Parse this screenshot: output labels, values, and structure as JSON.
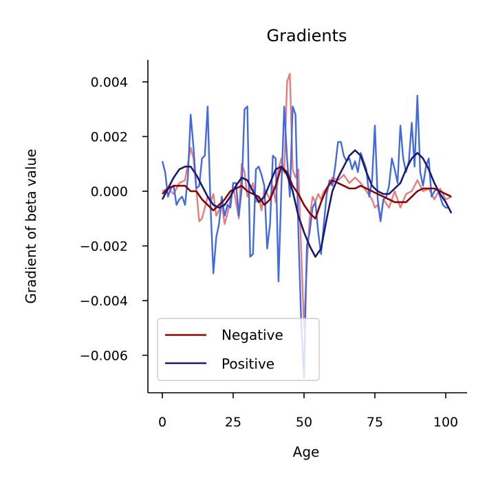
{
  "chart_data": {
    "type": "line",
    "title": "Gradients",
    "xlabel": "Age",
    "ylabel": "Gradient of beta value",
    "xlim": [
      -5,
      107
    ],
    "ylim": [
      -0.0073,
      0.0048
    ],
    "xticks": [
      0,
      25,
      50,
      75,
      100
    ],
    "xtick_labels": [
      "0",
      "25",
      "50",
      "75",
      "100"
    ],
    "yticks": [
      0.004,
      0.002,
      0.0,
      -0.002,
      -0.004,
      -0.006
    ],
    "ytick_labels": [
      "0.004",
      "0.002",
      "0.000",
      "−0.002",
      "−0.004",
      "−0.006"
    ],
    "grid": false,
    "legend": {
      "position": "bottom-left",
      "entries": [
        "Negative",
        "Positive"
      ]
    },
    "series": [
      {
        "name": "Negative raw",
        "role": "raw",
        "color": "#e87c7c",
        "x": [
          0,
          2,
          4,
          6,
          8,
          10,
          11,
          13,
          14,
          16,
          17,
          18,
          19,
          21,
          22,
          23,
          25,
          27,
          28,
          29,
          30,
          32,
          33,
          34,
          35,
          36,
          38,
          39,
          40,
          41,
          42,
          43,
          44,
          45,
          46,
          47,
          48,
          49,
          50,
          51,
          52,
          53,
          54,
          55,
          56,
          57,
          58,
          60,
          62,
          64,
          66,
          68,
          70,
          72,
          74,
          75,
          76,
          77,
          78,
          80,
          82,
          84,
          86,
          88,
          90,
          92,
          94,
          96,
          98,
          100,
          102
        ],
        "y": [
          0,
          0.0001,
          -0.0001,
          0.0003,
          0.0004,
          0.0016,
          0.0012,
          -0.0011,
          -0.001,
          -0.0002,
          -0.0004,
          -0.0001,
          -0.0009,
          -0.0005,
          -0.0012,
          -0.0008,
          0.0002,
          -0.001,
          0.001,
          0.0007,
          -0.0002,
          0.0003,
          -0.0004,
          -0.0002,
          -0.0007,
          0.0001,
          -0.0003,
          0.0002,
          -0.0004,
          0.0008,
          0.0012,
          0.0007,
          0.004,
          0.0043,
          0.0008,
          0.0005,
          0.0008,
          -0.0022,
          -0.005,
          -0.0027,
          -0.001,
          -0.0002,
          -0.0004,
          -0.0001,
          -0.0003,
          0,
          0.0001,
          0.0005,
          0.0004,
          0.0006,
          0.0003,
          0.0005,
          0.0003,
          0,
          -0.0003,
          -0.0006,
          -0.0005,
          -0.001,
          -0.0003,
          -0.0006,
          0,
          -0.0006,
          -0.0001,
          0,
          0.0004,
          0,
          0.0001,
          -0.0003,
          0.0001,
          -0.0003,
          -0.0002
        ]
      },
      {
        "name": "Positive raw",
        "role": "raw",
        "color": "#4169e1",
        "x": [
          0,
          1,
          2,
          3,
          4,
          5,
          6,
          7,
          8,
          9,
          10,
          11,
          12,
          13,
          14,
          15,
          16,
          17,
          18,
          19,
          20,
          21,
          22,
          23,
          24,
          25,
          26,
          27,
          28,
          29,
          30,
          31,
          32,
          33,
          34,
          35,
          36,
          37,
          38,
          39,
          40,
          41,
          42,
          43,
          44,
          45,
          46,
          47,
          48,
          49,
          50,
          51,
          52,
          53,
          54,
          55,
          56,
          57,
          58,
          59,
          60,
          61,
          62,
          63,
          64,
          65,
          66,
          67,
          68,
          69,
          70,
          71,
          72,
          73,
          74,
          75,
          76,
          77,
          78,
          79,
          80,
          81,
          82,
          83,
          84,
          85,
          86,
          87,
          88,
          89,
          90,
          91,
          92,
          93,
          94,
          95,
          96,
          97,
          98,
          99,
          100,
          101,
          102
        ],
        "y": [
          0.0011,
          0.0007,
          -0.0002,
          0.0001,
          0.0002,
          -0.0005,
          -0.0003,
          -0.0002,
          -0.0005,
          0.0005,
          0.0028,
          0.0016,
          0.0001,
          0.0002,
          0.0012,
          0.0013,
          0.0031,
          -0.0005,
          -0.003,
          -0.0017,
          -0.0012,
          -0.0002,
          -0.0009,
          -0.0005,
          -0.0006,
          0.0003,
          0.0003,
          -0.0009,
          0.0001,
          0.003,
          0.0031,
          -0.0024,
          -0.0023,
          0.0008,
          0.0009,
          0.0006,
          0.0002,
          -0.0021,
          -0.0012,
          0.0013,
          0.0012,
          -0.0033,
          0.0001,
          0.0031,
          0.0012,
          -0.0002,
          0.0031,
          0.0028,
          -0.0015,
          -0.0048,
          -0.0068,
          -0.002,
          -0.0015,
          -0.0006,
          -0.0004,
          -0.0015,
          -0.0023,
          -0.0012,
          -0.0001,
          0.0004,
          0.0002,
          0.0009,
          0.0018,
          0.0018,
          0.0013,
          0.0011,
          0.0012,
          0.0008,
          0.0011,
          0.0007,
          0.0014,
          0.0011,
          0.0008,
          -0.0002,
          0.0004,
          0.0024,
          -0.0003,
          -0.0011,
          -0.0003,
          -0.0002,
          0.0002,
          0.0012,
          0.0008,
          0.0003,
          0.0024,
          0.0012,
          0.0007,
          0.0011,
          0.0025,
          0.0009,
          0.0035,
          0.0007,
          0.0002,
          0.0009,
          0.0012,
          -0.0002,
          0,
          0.0001,
          -0.0002,
          -0.0005,
          -0.0006,
          -0.0006,
          -0.0008
        ]
      },
      {
        "name": "Negative",
        "role": "smoothed",
        "color": "#8b0000",
        "x": [
          0,
          2,
          4,
          6,
          8,
          10,
          12,
          14,
          16,
          18,
          20,
          22,
          24,
          26,
          28,
          30,
          32,
          34,
          36,
          38,
          40,
          42,
          44,
          46,
          48,
          50,
          52,
          54,
          56,
          58,
          60,
          62,
          64,
          66,
          68,
          70,
          72,
          74,
          76,
          78,
          80,
          82,
          84,
          86,
          88,
          90,
          92,
          94,
          96,
          98,
          100,
          102
        ],
        "y": [
          -0.0001,
          0.0001,
          0.0002,
          0.0002,
          0.0002,
          0,
          0,
          -0.0003,
          -0.0005,
          -0.0007,
          -0.0005,
          -0.0003,
          0,
          0.0001,
          0.0002,
          0,
          -0.0001,
          -0.0002,
          -0.0005,
          -0.0003,
          0.0002,
          0.0009,
          0.0007,
          0.0002,
          -0.0001,
          -0.0005,
          -0.0008,
          -0.001,
          -0.0004,
          0.0001,
          0.0004,
          0.0003,
          0.0002,
          0.0001,
          0.0001,
          0.0002,
          0.0001,
          0,
          -0.0001,
          -0.0002,
          -0.0003,
          -0.0004,
          -0.0004,
          -0.0004,
          -0.0002,
          0,
          0.0001,
          0.0001,
          0.0001,
          0,
          -0.0001,
          -0.0002
        ]
      },
      {
        "name": "Positive",
        "role": "smoothed",
        "color": "#191970",
        "x": [
          0,
          2,
          4,
          6,
          8,
          10,
          12,
          14,
          16,
          18,
          20,
          22,
          24,
          26,
          28,
          30,
          32,
          34,
          36,
          38,
          40,
          42,
          44,
          46,
          48,
          50,
          52,
          54,
          56,
          58,
          60,
          62,
          64,
          66,
          68,
          70,
          72,
          74,
          76,
          78,
          80,
          82,
          84,
          86,
          88,
          90,
          92,
          94,
          96,
          98,
          100,
          102
        ],
        "y": [
          -0.0003,
          0.0001,
          0.0005,
          0.0008,
          0.0009,
          0.0009,
          0.0006,
          0.0002,
          -0.0002,
          -0.0005,
          -0.0006,
          -0.0005,
          -0.0002,
          0.0002,
          0.0005,
          0.0004,
          0,
          -0.0004,
          -0.0002,
          0.0003,
          0.0008,
          0.0009,
          0.0006,
          0,
          -0.0009,
          -0.0015,
          -0.002,
          -0.0024,
          -0.0021,
          -0.001,
          0,
          0.0005,
          0.0009,
          0.0013,
          0.0015,
          0.0013,
          0.0007,
          0.0002,
          0,
          -0.0001,
          -0.0001,
          0.0001,
          0.0003,
          0.0008,
          0.0012,
          0.0014,
          0.0012,
          0.0008,
          0.0003,
          -0.0001,
          -0.0004,
          -0.0008
        ]
      }
    ]
  }
}
